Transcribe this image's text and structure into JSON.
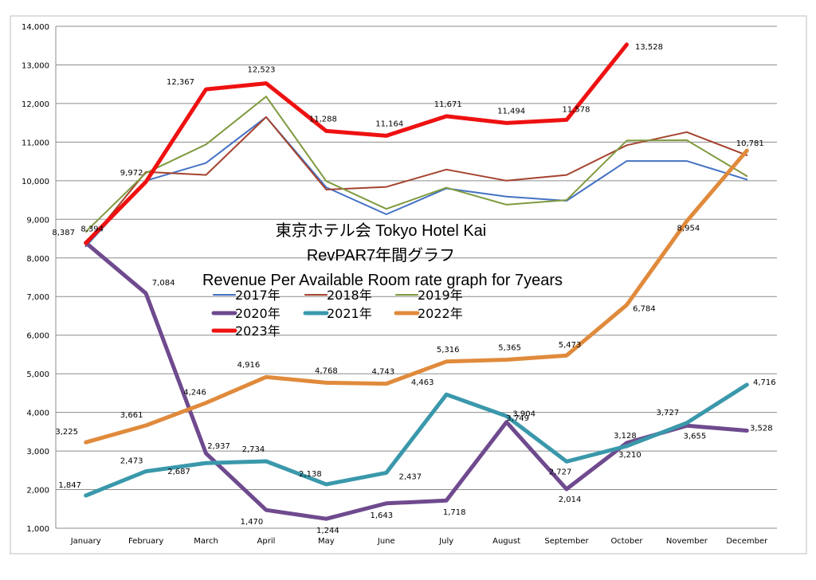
{
  "chart_data": {
    "type": "line",
    "title_lines": [
      "東京ホテル会  Tokyo Hotel Kai",
      "RevPAR7年間グラフ",
      "Revenue Per Available Room rate graph for 7years"
    ],
    "categories": [
      "January",
      "February",
      "March",
      "April",
      "May",
      "June",
      "July",
      "August",
      "September",
      "October",
      "November",
      "December"
    ],
    "ylim": [
      1000,
      14000
    ],
    "y_ticks": [
      1000,
      2000,
      3000,
      4000,
      5000,
      6000,
      7000,
      8000,
      9000,
      10000,
      11000,
      12000,
      13000,
      14000
    ],
    "y_tick_labels": [
      "1,000",
      "2,000",
      "3,000",
      "4,000",
      "5,000",
      "6,000",
      "7,000",
      "8,000",
      "9,000",
      "10,000",
      "11,000",
      "12,000",
      "13,000",
      "14,000"
    ],
    "grid": true,
    "series": [
      {
        "name": "2017年",
        "color": "#4472c4",
        "width": 2,
        "values": [
          8300,
          10000,
          10460,
          11650,
          9830,
          9130,
          9800,
          9590,
          9480,
          10510,
          10510,
          10030
        ]
      },
      {
        "name": "2018年",
        "color": "#a5432e",
        "width": 2,
        "values": [
          8320,
          10230,
          10150,
          11650,
          9770,
          9840,
          10290,
          10000,
          10150,
          10920,
          11260,
          10660
        ]
      },
      {
        "name": "2019年",
        "color": "#7f9a3f",
        "width": 2,
        "values": [
          8680,
          10200,
          10940,
          12180,
          9990,
          9270,
          9820,
          9380,
          9500,
          11040,
          11050,
          10120
        ]
      },
      {
        "name": "2020年",
        "color": "#6f4a8e",
        "width": 5,
        "values": [
          8394,
          7084,
          2937,
          1470,
          1244,
          1643,
          1718,
          3749,
          2014,
          3210,
          3655,
          3528
        ],
        "labels": [
          "8,394",
          "7,084",
          "2,937",
          "1,470",
          "1,244",
          "1,643",
          "1,718",
          "3,749",
          "2,014",
          "3,210",
          "3,655",
          "3,528"
        ]
      },
      {
        "name": "2021年",
        "color": "#3a98ab",
        "width": 5,
        "values": [
          1847,
          2473,
          2687,
          2734,
          2138,
          2437,
          4463,
          3904,
          2727,
          3128,
          3727,
          4716
        ],
        "labels": [
          "1,847",
          "2,473",
          "2,687",
          "2,734",
          "2,138",
          "2,437",
          "4,463",
          "3,904",
          "2,727",
          "3,128",
          "3,727",
          "4,716"
        ]
      },
      {
        "name": "2022年",
        "color": "#e08a3c",
        "width": 5,
        "values": [
          3225,
          3661,
          4246,
          4916,
          4768,
          4743,
          5316,
          5365,
          5473,
          6784,
          8954,
          10781
        ],
        "labels": [
          "3,225",
          "3,661",
          "4,246",
          "4,916",
          "4,768",
          "4,743",
          "5,316",
          "5,365",
          "5,473",
          "6,784",
          "8,954",
          "10,781"
        ]
      },
      {
        "name": "2023年",
        "color": "#ee1111",
        "width": 5,
        "values": [
          8387,
          9972,
          12367,
          12523,
          11288,
          11164,
          11671,
          11494,
          11578,
          13528,
          null,
          null
        ],
        "labels": [
          "8,387",
          "9,972",
          "12,367",
          "12,523",
          "11,288",
          "11,164",
          "11,671",
          "11,494",
          "11,578",
          "13,528",
          null,
          null
        ]
      }
    ],
    "legend_position": "center-left"
  }
}
